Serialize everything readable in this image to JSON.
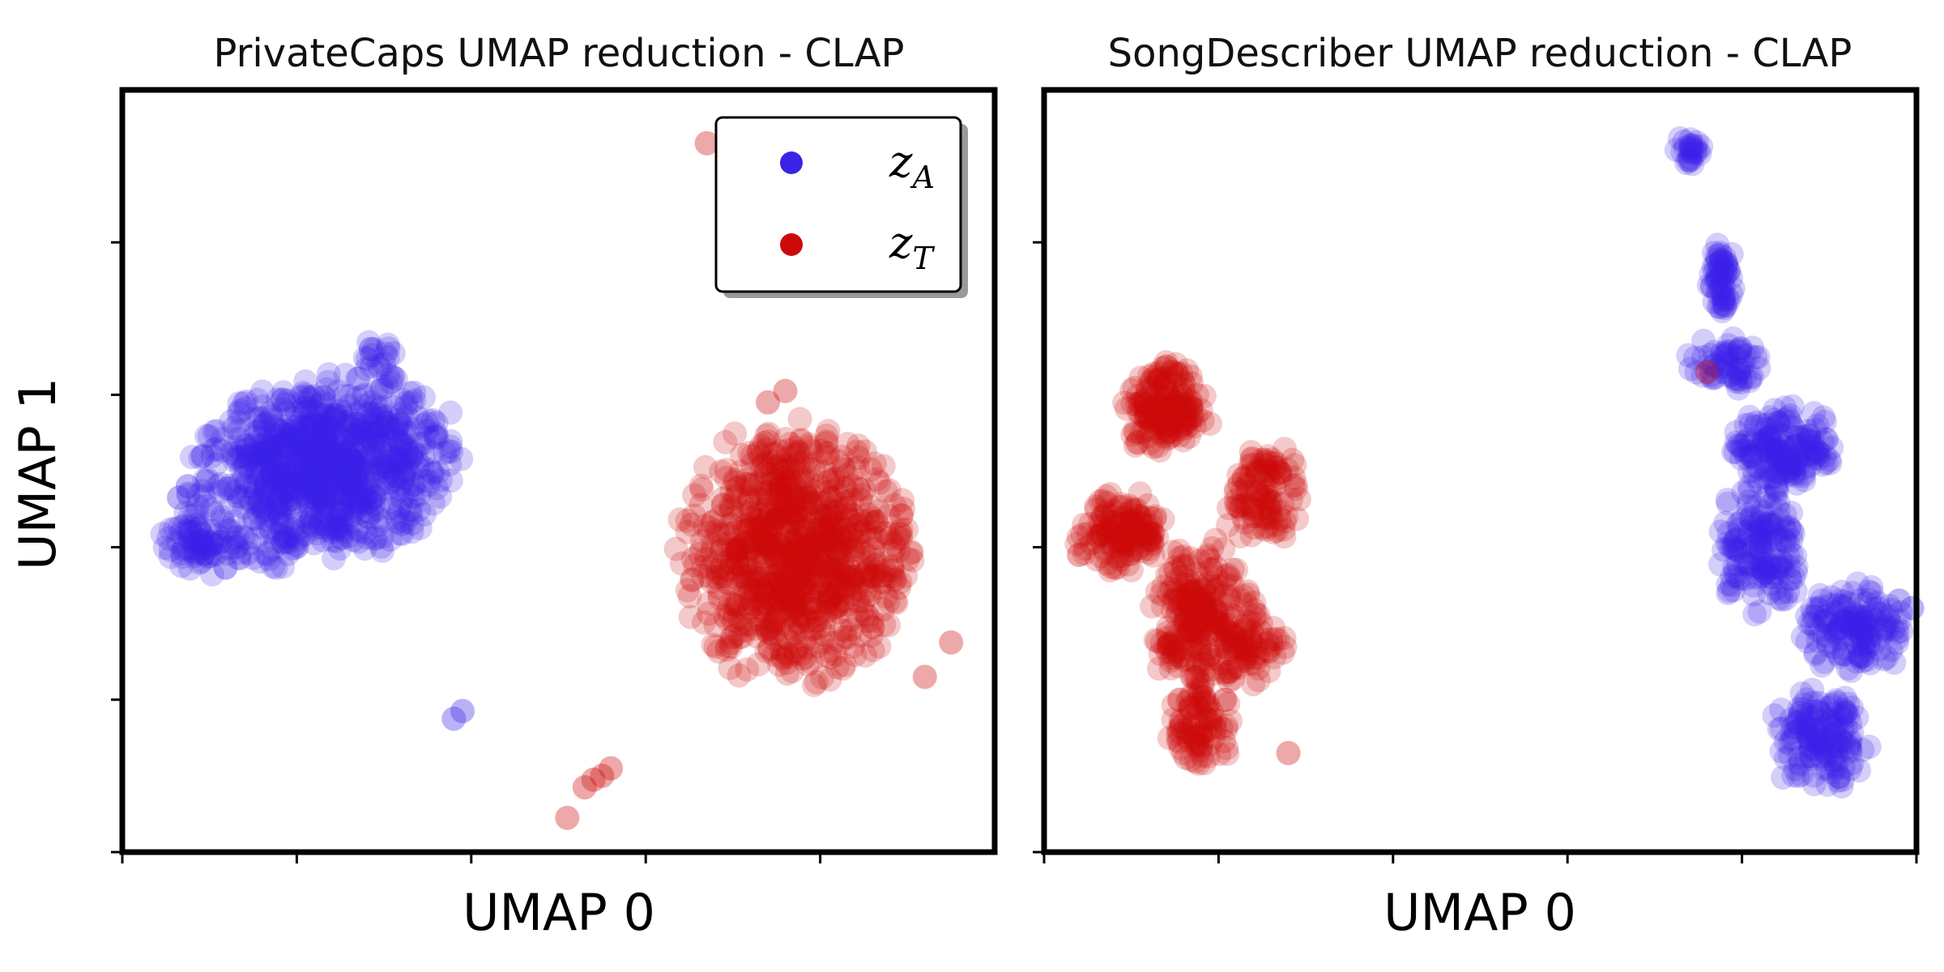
{
  "figure": {
    "ylabel": "UMAP 1",
    "legend": {
      "placement": "top-right of left panel",
      "entries": [
        {
          "name": "z",
          "sub": "A",
          "color": "#3a22e6"
        },
        {
          "name": "z",
          "sub": "T",
          "color": "#cc0a0a"
        }
      ]
    }
  },
  "chart_data": [
    {
      "type": "scatter",
      "title": "PrivateCaps UMAP reduction - CLAP",
      "xlabel": "UMAP 0",
      "ylabel": "UMAP 1",
      "tick_labels_shown": false,
      "xlim": [
        0,
        10
      ],
      "ylim": [
        0,
        10
      ],
      "x_ticks": [
        0,
        2,
        4,
        6,
        8
      ],
      "y_ticks": [
        0,
        2,
        4,
        6,
        8
      ],
      "grid": false,
      "legend_position": "top-right",
      "series": [
        {
          "name": "z_A",
          "color": "#3a22e6",
          "clusters": [
            {
              "cx": 2.3,
              "cy": 5.0,
              "rx": 1.6,
              "ry": 1.2,
              "n": 900,
              "tilt": 20
            },
            {
              "cx": 0.9,
              "cy": 4.0,
              "rx": 0.5,
              "ry": 0.35,
              "n": 70,
              "tilt": 0
            },
            {
              "cx": 2.9,
              "cy": 6.5,
              "rx": 0.25,
              "ry": 0.2,
              "n": 15,
              "tilt": 0
            }
          ],
          "points": [
            [
              0.75,
              4.8
            ],
            [
              0.65,
              4.65
            ],
            [
              3.8,
              1.75
            ],
            [
              3.9,
              1.85
            ],
            [
              2.85,
              6.6
            ]
          ]
        },
        {
          "name": "z_T",
          "color": "#cc0a0a",
          "clusters": [
            {
              "cx": 7.7,
              "cy": 3.9,
              "rx": 1.3,
              "ry": 1.75,
              "n": 900,
              "tilt": 0
            }
          ],
          "points": [
            [
              6.7,
              9.3
            ],
            [
              7.6,
              6.05
            ],
            [
              7.4,
              5.9
            ],
            [
              8.6,
              2.95
            ],
            [
              9.5,
              2.75
            ],
            [
              9.2,
              2.3
            ],
            [
              5.1,
              0.45
            ],
            [
              5.3,
              0.85
            ],
            [
              5.5,
              1.0
            ],
            [
              5.6,
              1.1
            ],
            [
              5.4,
              0.95
            ]
          ]
        }
      ]
    },
    {
      "type": "scatter",
      "title": "SongDescriber UMAP reduction - CLAP",
      "xlabel": "UMAP 0",
      "tick_labels_shown": false,
      "xlim": [
        0,
        10
      ],
      "ylim": [
        0,
        10
      ],
      "x_ticks": [
        0,
        2,
        4,
        6,
        8,
        10
      ],
      "y_ticks": [
        0,
        4,
        8
      ],
      "grid": false,
      "series": [
        {
          "name": "z_A",
          "color": "#3a22e6",
          "clusters": [
            {
              "cx": 7.4,
              "cy": 9.2,
              "rx": 0.15,
              "ry": 0.25,
              "n": 25,
              "tilt": 0
            },
            {
              "cx": 7.75,
              "cy": 7.5,
              "rx": 0.15,
              "ry": 0.6,
              "n": 60,
              "tilt": 0
            },
            {
              "cx": 7.8,
              "cy": 6.4,
              "rx": 0.45,
              "ry": 0.35,
              "n": 60,
              "tilt": 0
            },
            {
              "cx": 8.5,
              "cy": 5.3,
              "rx": 0.6,
              "ry": 0.55,
              "n": 170,
              "tilt": 0
            },
            {
              "cx": 8.2,
              "cy": 4.0,
              "rx": 0.5,
              "ry": 0.9,
              "n": 160,
              "tilt": 0
            },
            {
              "cx": 9.3,
              "cy": 2.9,
              "rx": 0.6,
              "ry": 0.6,
              "n": 150,
              "tilt": 0
            },
            {
              "cx": 8.9,
              "cy": 1.5,
              "rx": 0.6,
              "ry": 0.7,
              "n": 150,
              "tilt": 0
            }
          ],
          "points": [
            [
              9.95,
              3.2
            ],
            [
              9.8,
              3.3
            ]
          ]
        },
        {
          "name": "z_T",
          "color": "#cc0a0a",
          "clusters": [
            {
              "cx": 1.4,
              "cy": 5.8,
              "rx": 0.5,
              "ry": 0.6,
              "n": 180,
              "tilt": 0
            },
            {
              "cx": 0.9,
              "cy": 4.2,
              "rx": 0.55,
              "ry": 0.55,
              "n": 140,
              "tilt": 0
            },
            {
              "cx": 1.8,
              "cy": 3.0,
              "rx": 0.55,
              "ry": 1.1,
              "n": 250,
              "tilt": 0
            },
            {
              "cx": 1.8,
              "cy": 1.6,
              "rx": 0.4,
              "ry": 0.5,
              "n": 80,
              "tilt": 0
            },
            {
              "cx": 2.5,
              "cy": 4.6,
              "rx": 0.45,
              "ry": 0.55,
              "n": 80,
              "tilt": 0
            },
            {
              "cx": 2.4,
              "cy": 2.7,
              "rx": 0.35,
              "ry": 0.6,
              "n": 60,
              "tilt": 0
            },
            {
              "cx": 2.6,
              "cy": 5.0,
              "rx": 0.4,
              "ry": 0.3,
              "n": 30,
              "tilt": 0
            }
          ],
          "points": [
            [
              7.6,
              6.3
            ],
            [
              0.4,
              3.9
            ],
            [
              2.8,
              1.3
            ]
          ]
        }
      ]
    }
  ]
}
